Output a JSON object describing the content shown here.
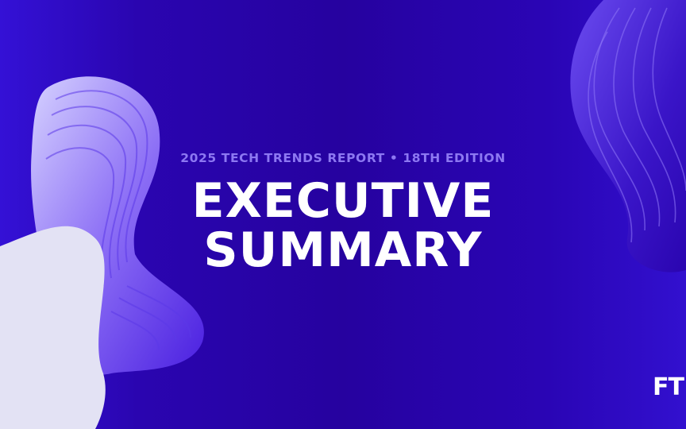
{
  "header": {
    "eyebrow": "2025 TECH TRENDS REPORT • 18TH EDITION",
    "title_lines": [
      "EXECUTIVE",
      "SUMMARY"
    ]
  },
  "logo": "FT"
}
